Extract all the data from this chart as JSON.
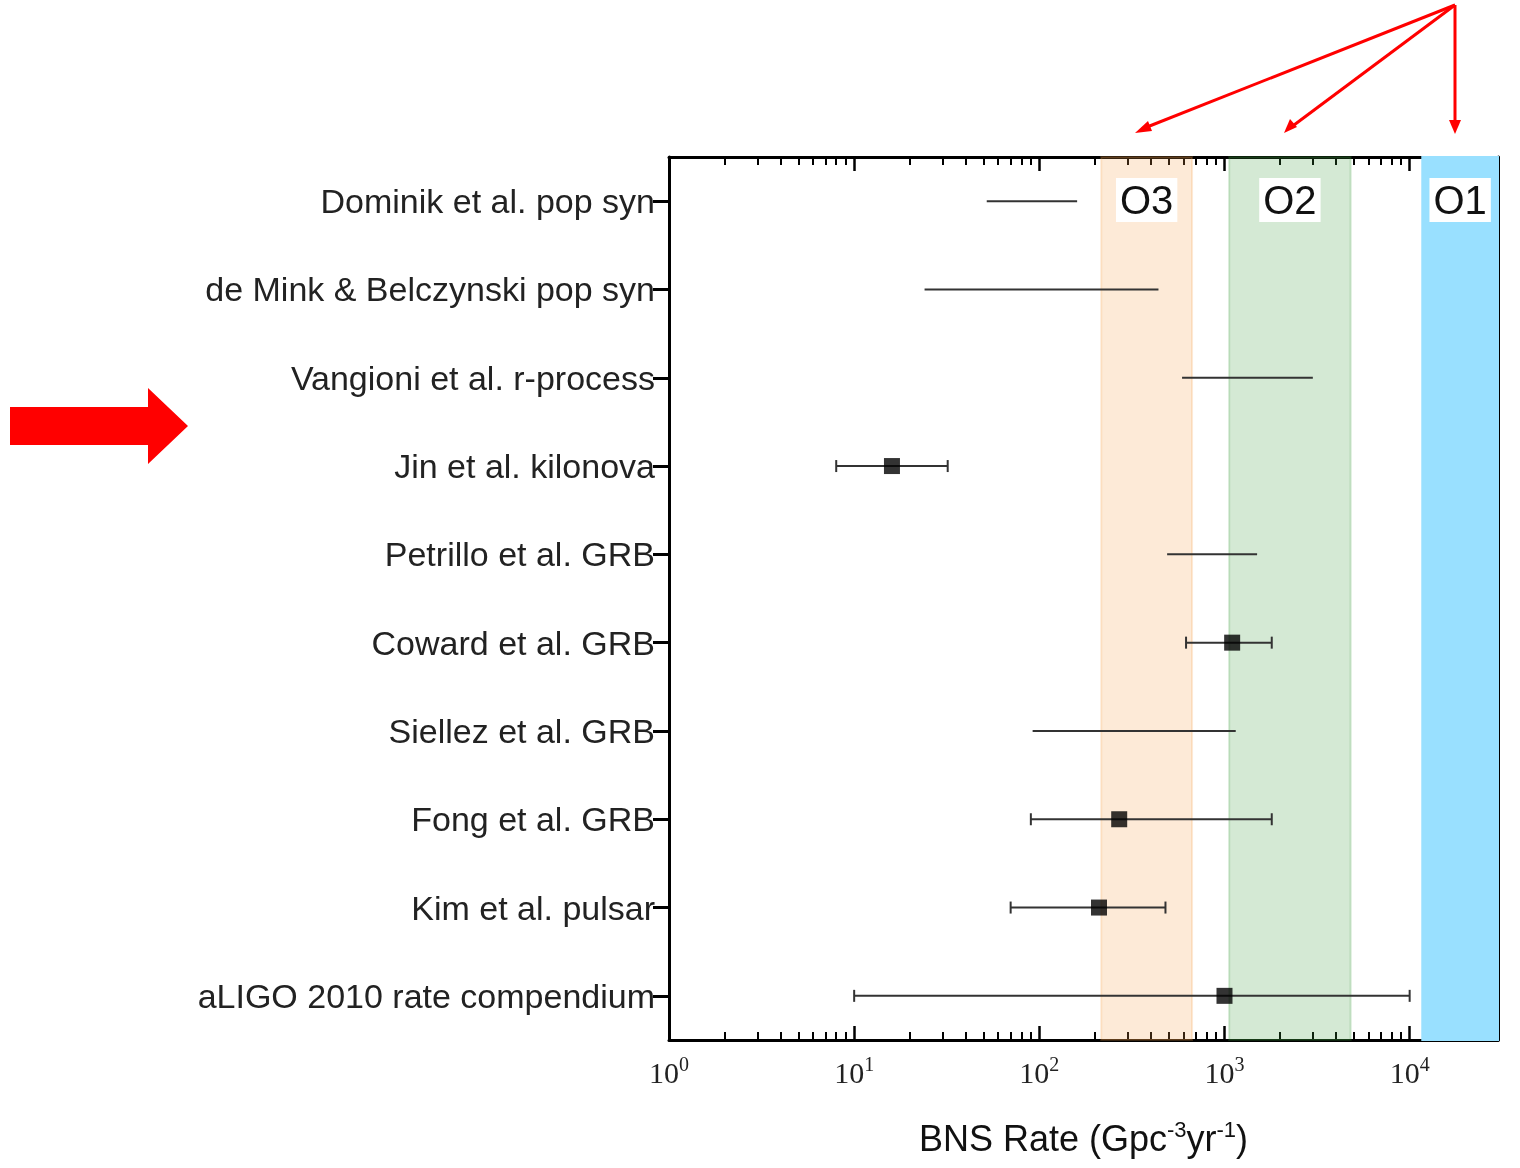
{
  "chart_data": {
    "type": "scatter",
    "orientation": "horizontal",
    "xlabel": "BNS Rate (Gpc$^{-3}$yr$^{-1}$)",
    "log": "x",
    "marker": "square",
    "grid": false,
    "categories": [
      "Dominik et al. pop syn",
      "de Mink & Belczynski pop syn",
      "Vangioni et al. r-process",
      "Jin et al. kilonova",
      "Petrillo et al. GRB",
      "Coward et al. GRB",
      "Siellez et al. GRB",
      "Fong et al. GRB",
      "Kim et al. pulsar",
      "aLIGO 2010 rate compendium"
    ],
    "xlim": [
      1,
      30000
    ],
    "xticks": [
      {
        "value": 1,
        "label": "10$^{0}$"
      },
      {
        "value": 10,
        "label": "10$^{1}$"
      },
      {
        "value": 100,
        "label": "10$^{2}$"
      },
      {
        "value": 1000,
        "label": "10$^{3}$"
      },
      {
        "value": 10000,
        "label": "10$^{4}$"
      }
    ],
    "series": [
      {
        "color": "#000000",
        "values": [
          null,
          null,
          null,
          16,
          null,
          1100,
          null,
          270,
          210,
          1000
        ],
        "errors": [
          null,
          null,
          null,
          [
            8,
            32
          ],
          null,
          [
            620,
            1800
          ],
          null,
          [
            90,
            1800
          ],
          [
            70,
            480
          ],
          [
            10,
            10000
          ]
        ]
      },
      {
        "type": "bar",
        "color": "#333333",
        "base": [
          52,
          24,
          590,
          null,
          490,
          null,
          92,
          null,
          null,
          null
        ],
        "values": [
          108,
          416,
          2410,
          null,
          1010,
          null,
          1058,
          null,
          null,
          null
        ]
      }
    ],
    "bands": [
      {
        "axis": "x",
        "from": 216,
        "to": 668,
        "label": "O3",
        "color": "#f5a04a"
      },
      {
        "axis": "x",
        "from": 1060,
        "to": 4800,
        "label": "O2",
        "color": "#3a9a3a"
      },
      {
        "axis": "x",
        "from": 11700,
        "to": 30000,
        "label": "O1",
        "color": "#99e0ff"
      }
    ]
  }
}
